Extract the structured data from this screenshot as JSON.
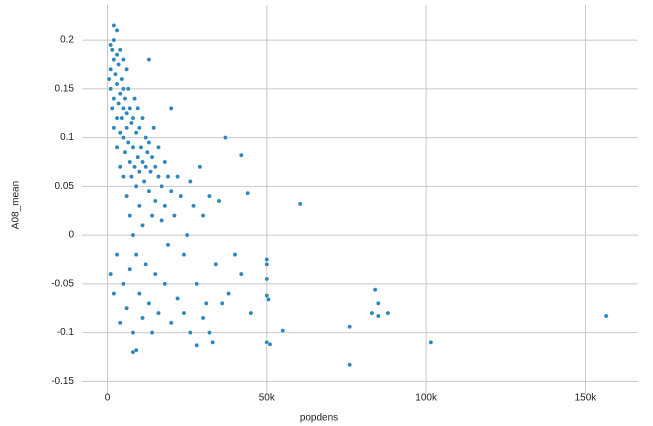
{
  "chart_data": {
    "type": "scatter",
    "x_label": "popdens",
    "y_label": "A08_mean",
    "color": "#2e86c1",
    "grid": true,
    "xlim": [
      -8000,
      166500
    ],
    "ylim": [
      -0.164,
      0.236
    ],
    "xticks": [
      0,
      {
        "value": 50000,
        "label": "50k"
      },
      {
        "value": 100000,
        "label": "100k"
      },
      {
        "value": 150000,
        "label": "150k"
      }
    ],
    "yticks": [
      0.2,
      0.15,
      0.1,
      0.05,
      0,
      -0.05,
      -0.1,
      -0.15
    ],
    "x": [
      500,
      1000,
      1000,
      1500,
      1500,
      2000,
      2000,
      2000,
      2500,
      3000,
      3000,
      3000,
      3500,
      3500,
      4000,
      4000,
      4000,
      4500,
      4500,
      5000,
      5000,
      5000,
      5000,
      5500,
      5500,
      6000,
      6000,
      6000,
      6500,
      6500,
      7000,
      7000,
      7000,
      7500,
      7500,
      8000,
      8000,
      8000,
      8500,
      8500,
      9000,
      9000,
      9000,
      9500,
      9500,
      10000,
      10000,
      10000,
      10500,
      11000,
      11000,
      11000,
      11500,
      12000,
      12000,
      12000,
      12500,
      13000,
      13000,
      13500,
      14000,
      14000,
      14500,
      15000,
      15000,
      15000,
      16000,
      16000,
      17000,
      17000,
      18000,
      18000,
      19000,
      19000,
      20000,
      20000,
      21000,
      22000,
      23000,
      24000,
      25000,
      26000,
      27000,
      28000,
      29000,
      30000,
      31000,
      32000,
      34000,
      35000,
      36000,
      38000,
      40000,
      42000,
      45000,
      1000,
      2000,
      3000,
      4000,
      5000,
      6000,
      7000,
      8000,
      10000,
      11000,
      13000,
      14000,
      16000,
      18000,
      20000,
      22000,
      24000,
      26000,
      30000,
      32000,
      2000,
      1000,
      3000,
      4000,
      5000,
      6000,
      156500,
      101500,
      76000,
      76000,
      84000,
      85000,
      83000,
      85000,
      88000,
      60500,
      55000,
      50000,
      51000,
      50000,
      50000,
      50000,
      50000,
      50500,
      44000,
      42000,
      37000,
      2000,
      3000,
      13000,
      28000,
      33000,
      8000,
      9000
    ],
    "values": [
      0.16,
      0.17,
      0.15,
      0.19,
      0.13,
      0.18,
      0.14,
      0.11,
      0.165,
      0.155,
      0.12,
      0.09,
      0.175,
      0.135,
      0.145,
      0.105,
      0.07,
      0.16,
      0.12,
      0.15,
      0.13,
      0.1,
      0.06,
      0.14,
      0.085,
      0.125,
      0.11,
      0.04,
      0.15,
      0.095,
      0.13,
      0.075,
      0.02,
      0.115,
      0.06,
      0.12,
      0.09,
      0,
      0.14,
      0.07,
      0.105,
      0.05,
      -0.02,
      0.13,
      0.08,
      0.11,
      0.065,
      0.03,
      0.09,
      0.12,
      0.075,
      0.01,
      0.055,
      0.1,
      0.07,
      -0.03,
      0.085,
      0.095,
      0.045,
      0.065,
      0.08,
      0.02,
      0.11,
      0.07,
      0.035,
      -0.04,
      0.06,
      0.09,
      0.05,
      0.015,
      0.075,
      0.03,
      0.06,
      -0.01,
      0.045,
      0.13,
      0.02,
      0.06,
      0.04,
      -0.02,
      0,
      0.055,
      0.03,
      -0.05,
      0.07,
      0.02,
      -0.07,
      0.04,
      -0.03,
      0.035,
      -0.07,
      -0.06,
      -0.02,
      -0.04,
      -0.08,
      -0.04,
      -0.06,
      -0.02,
      -0.09,
      -0.05,
      -0.075,
      -0.035,
      -0.1,
      -0.06,
      -0.085,
      -0.07,
      -0.1,
      -0.08,
      -0.05,
      -0.09,
      -0.065,
      -0.08,
      -0.1,
      -0.085,
      -0.1,
      0.2,
      0.195,
      0.185,
      0.19,
      0.18,
      0.17,
      -0.083,
      -0.11,
      -0.133,
      -0.094,
      -0.056,
      -0.07,
      -0.08,
      -0.083,
      -0.08,
      0.032,
      -0.098,
      -0.11,
      -0.112,
      -0.025,
      -0.03,
      -0.045,
      -0.062,
      -0.066,
      0.043,
      0.082,
      0.1,
      0.215,
      0.21,
      0.18,
      -0.113,
      -0.11,
      -0.12,
      -0.118
    ]
  }
}
